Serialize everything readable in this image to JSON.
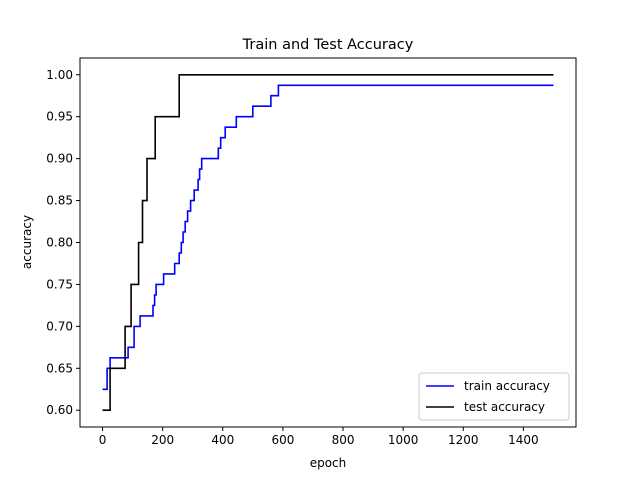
{
  "chart_data": {
    "type": "line",
    "title": "Train and Test Accuracy",
    "xlabel": "epoch",
    "ylabel": "accuracy",
    "xlim": [
      -75,
      1575
    ],
    "ylim": [
      0.58,
      1.02
    ],
    "xticks": [
      0,
      200,
      400,
      600,
      800,
      1000,
      1200,
      1400
    ],
    "yticks": [
      0.6,
      0.65,
      0.7,
      0.75,
      0.8,
      0.85,
      0.9,
      0.95,
      1.0
    ],
    "grid": false,
    "legend_position": "lower right",
    "series": [
      {
        "name": "train accuracy",
        "color": "#0000ff",
        "step": true,
        "points": [
          [
            0,
            0.625
          ],
          [
            15,
            0.625
          ],
          [
            15,
            0.65
          ],
          [
            25,
            0.65
          ],
          [
            25,
            0.6625
          ],
          [
            75,
            0.6625
          ],
          [
            75,
            0.6625
          ],
          [
            85,
            0.6625
          ],
          [
            85,
            0.675
          ],
          [
            105,
            0.675
          ],
          [
            105,
            0.7
          ],
          [
            125,
            0.7
          ],
          [
            125,
            0.7125
          ],
          [
            168,
            0.7125
          ],
          [
            168,
            0.725
          ],
          [
            173,
            0.725
          ],
          [
            173,
            0.7375
          ],
          [
            178,
            0.7375
          ],
          [
            178,
            0.75
          ],
          [
            203,
            0.75
          ],
          [
            203,
            0.7625
          ],
          [
            240,
            0.7625
          ],
          [
            240,
            0.775
          ],
          [
            255,
            0.775
          ],
          [
            255,
            0.7875
          ],
          [
            262,
            0.7875
          ],
          [
            262,
            0.8
          ],
          [
            268,
            0.8
          ],
          [
            268,
            0.8125
          ],
          [
            275,
            0.8125
          ],
          [
            275,
            0.825
          ],
          [
            283,
            0.825
          ],
          [
            283,
            0.8375
          ],
          [
            293,
            0.8375
          ],
          [
            293,
            0.85
          ],
          [
            305,
            0.85
          ],
          [
            305,
            0.8625
          ],
          [
            318,
            0.8625
          ],
          [
            318,
            0.875
          ],
          [
            323,
            0.875
          ],
          [
            323,
            0.8875
          ],
          [
            330,
            0.8875
          ],
          [
            330,
            0.9
          ],
          [
            385,
            0.9
          ],
          [
            385,
            0.9125
          ],
          [
            393,
            0.9125
          ],
          [
            393,
            0.925
          ],
          [
            408,
            0.925
          ],
          [
            408,
            0.9375
          ],
          [
            445,
            0.9375
          ],
          [
            445,
            0.95
          ],
          [
            500,
            0.95
          ],
          [
            500,
            0.9625
          ],
          [
            560,
            0.9625
          ],
          [
            560,
            0.975
          ],
          [
            585,
            0.975
          ],
          [
            585,
            0.9875
          ],
          [
            1500,
            0.9875
          ]
        ]
      },
      {
        "name": "test accuracy",
        "color": "#000000",
        "step": true,
        "points": [
          [
            0,
            0.6
          ],
          [
            25,
            0.6
          ],
          [
            25,
            0.65
          ],
          [
            75,
            0.65
          ],
          [
            75,
            0.7
          ],
          [
            95,
            0.7
          ],
          [
            95,
            0.75
          ],
          [
            120,
            0.75
          ],
          [
            120,
            0.8
          ],
          [
            133,
            0.8
          ],
          [
            133,
            0.85
          ],
          [
            148,
            0.85
          ],
          [
            148,
            0.9
          ],
          [
            175,
            0.9
          ],
          [
            175,
            0.95
          ],
          [
            255,
            0.95
          ],
          [
            255,
            1.0
          ],
          [
            1500,
            1.0
          ]
        ]
      }
    ]
  }
}
